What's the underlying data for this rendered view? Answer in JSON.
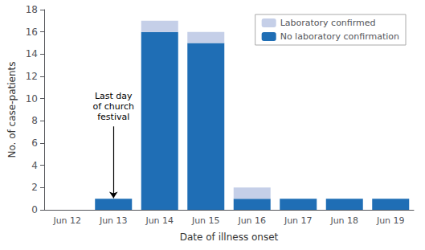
{
  "chart_data": {
    "type": "bar",
    "stacked": true,
    "categories": [
      "Jun 12",
      "Jun 13",
      "Jun 14",
      "Jun 15",
      "Jun 16",
      "Jun 17",
      "Jun 18",
      "Jun 19"
    ],
    "series": [
      {
        "name": "No laboratory confirmation",
        "color": "#1f6eb5",
        "values": [
          0,
          1,
          16,
          15,
          1,
          1,
          1,
          1
        ]
      },
      {
        "name": "Laboratory confirmed",
        "color": "#c5cfe8",
        "values": [
          0,
          0,
          1,
          1,
          1,
          0,
          0,
          0
        ]
      }
    ],
    "xlabel": "Date of illness onset",
    "ylabel": "No. of case-patients",
    "ylim": [
      0,
      18
    ],
    "yticks": [
      0,
      2,
      4,
      6,
      8,
      10,
      12,
      14,
      16,
      18
    ],
    "grid": false,
    "legend": "upper right",
    "annotations": [
      {
        "text": "Last day\nof church\nfestival",
        "x": "Jun 13",
        "y": 1.05,
        "text_y": 7.5
      }
    ]
  }
}
